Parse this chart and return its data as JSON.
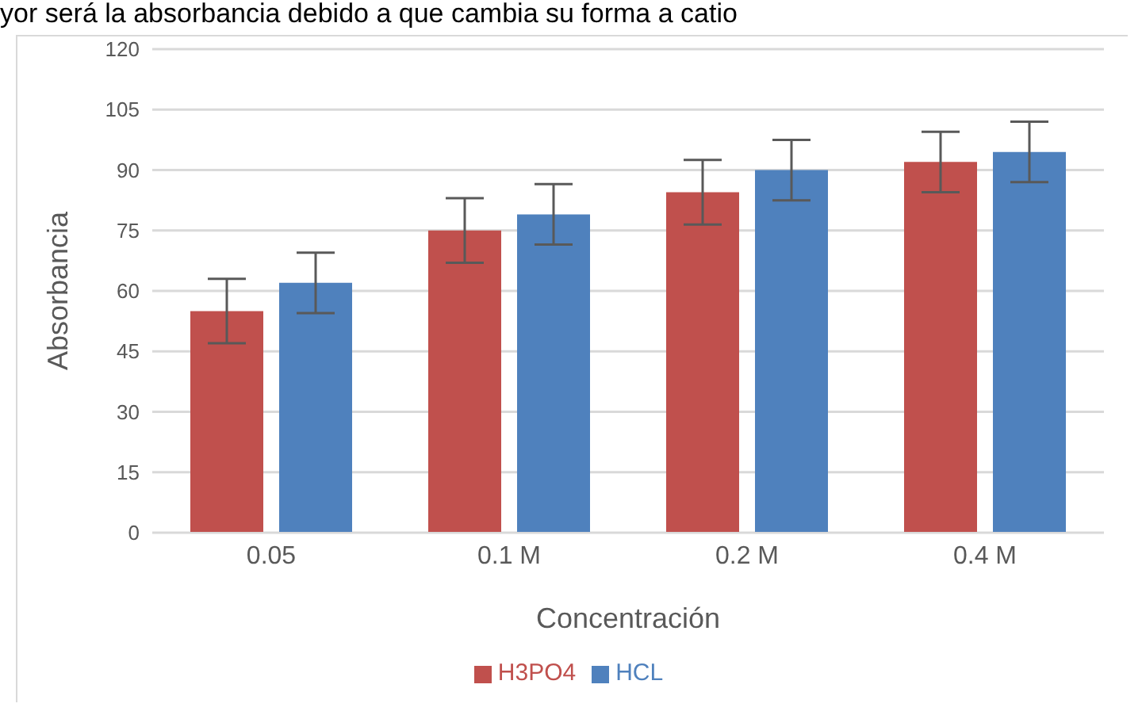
{
  "chart_data": {
    "type": "bar",
    "xlabel": "Concentración",
    "ylabel": "Absorbancia",
    "annotations": [
      "yor será la absorbancia debido a que cambia su forma a catio"
    ],
    "categories": [
      "0.05",
      "0.1 M",
      "0.2 M",
      "0.4 M"
    ],
    "series": [
      {
        "name": "H3PO4",
        "color": "#c0504d",
        "values": [
          55,
          75,
          84.5,
          92
        ],
        "errors": [
          8,
          8,
          8,
          7.5
        ]
      },
      {
        "name": "HCL",
        "color": "#4f81bd",
        "values": [
          62,
          79,
          90,
          94.5
        ],
        "errors": [
          7.5,
          7.5,
          7.5,
          7.5
        ]
      }
    ],
    "ylim": [
      0,
      120
    ],
    "yticks": [
      0,
      15,
      30,
      45,
      60,
      75,
      90,
      105,
      120
    ],
    "grid": "y",
    "legend": "bottom"
  }
}
